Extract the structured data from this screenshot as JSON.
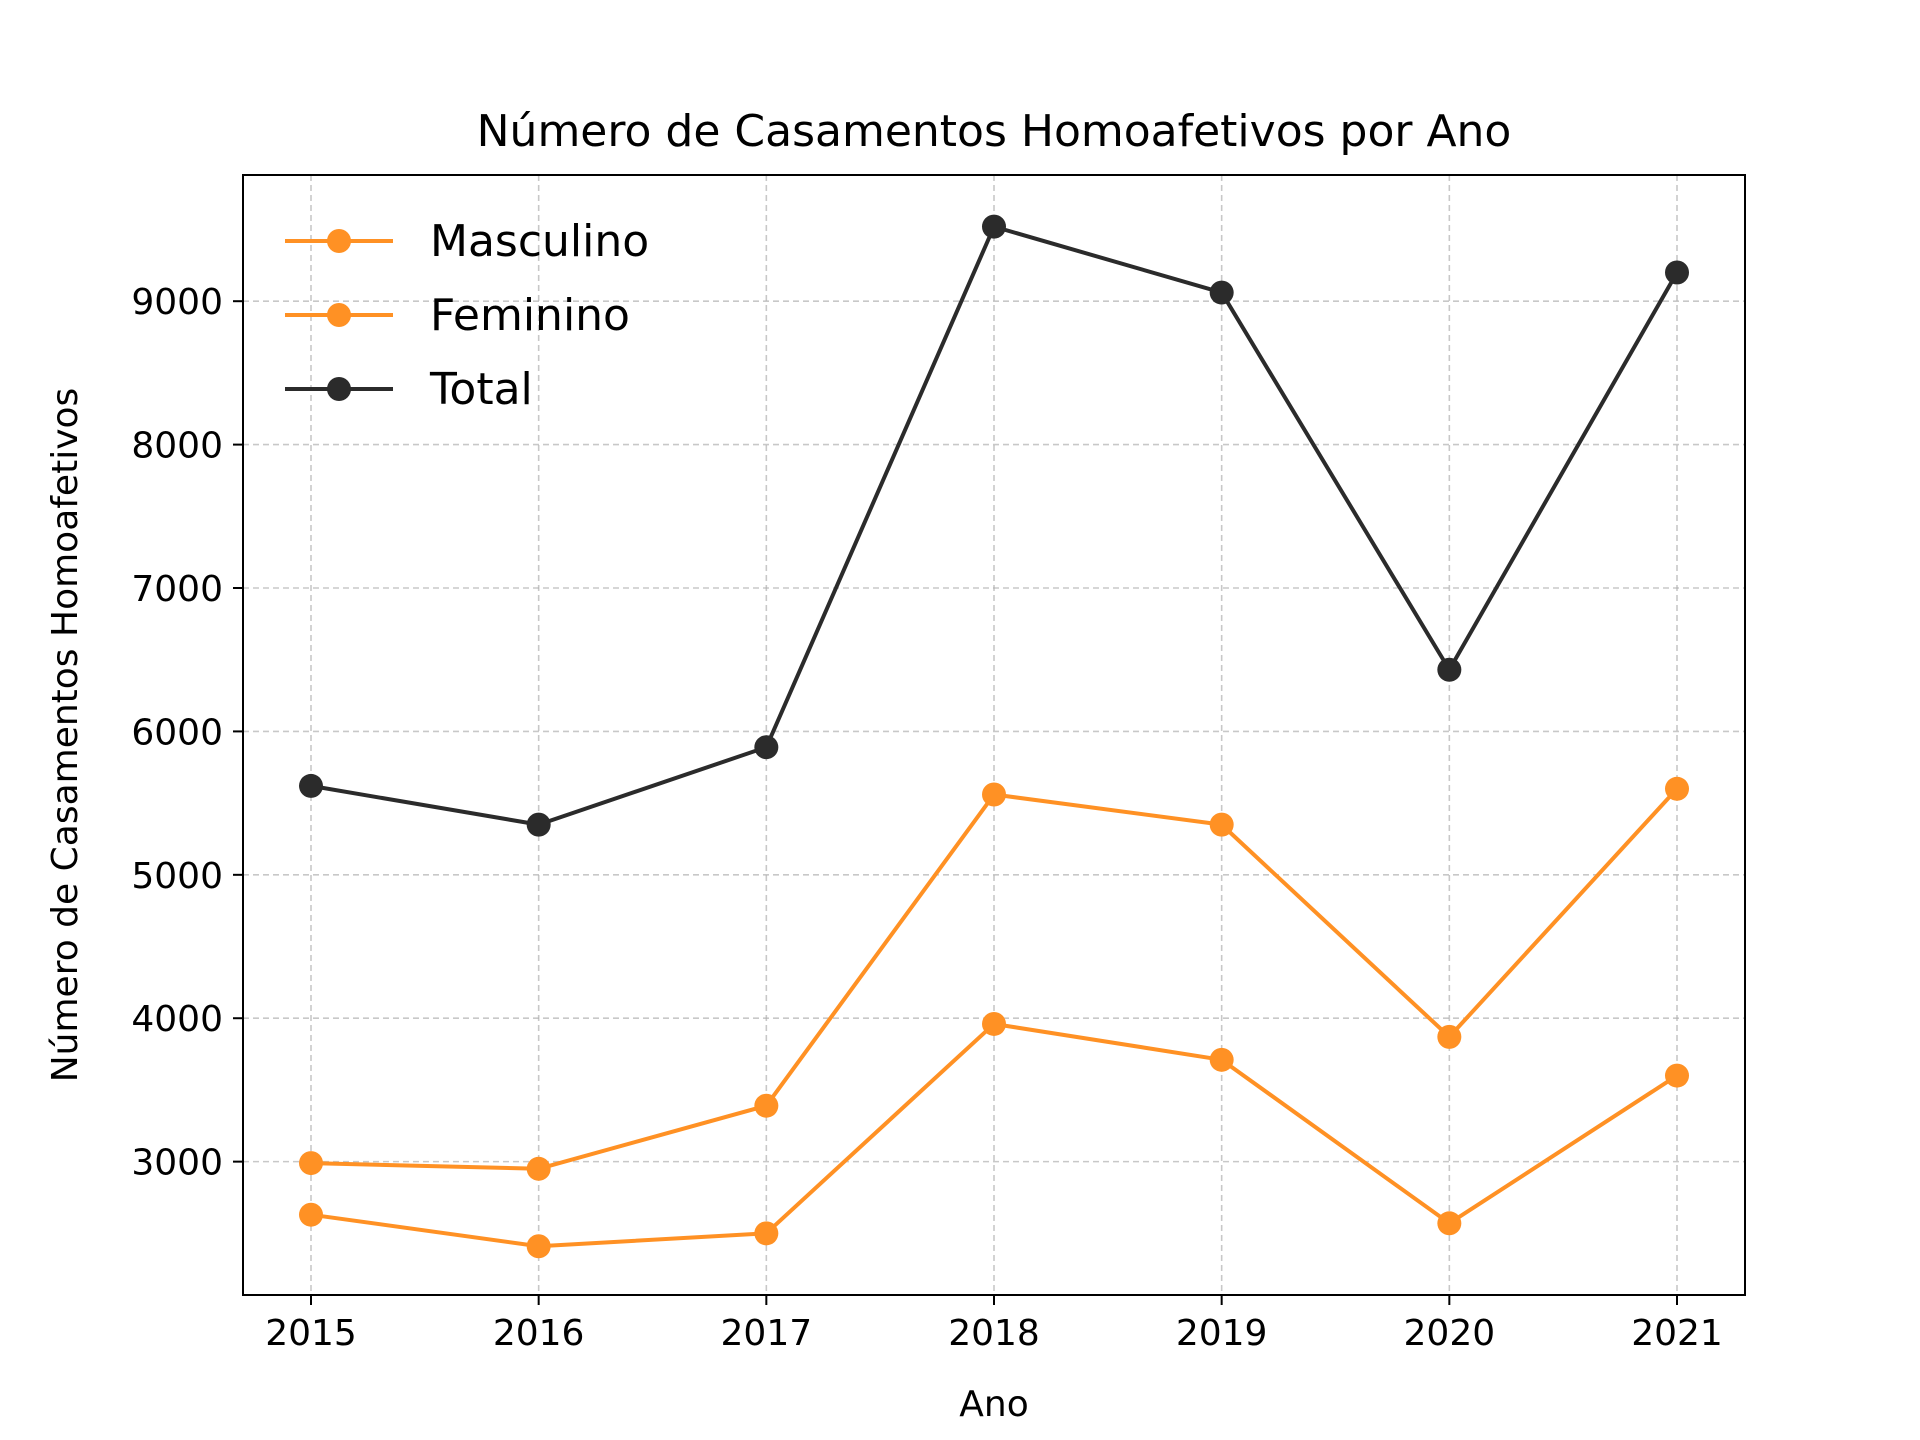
{
  "chart_data": {
    "type": "line",
    "title": "Número de Casamentos Homoafetivos por Ano",
    "xlabel": "Ano",
    "ylabel": "Número de Casamentos Homoafetivos",
    "x": [
      2015,
      2016,
      2017,
      2018,
      2019,
      2020,
      2021
    ],
    "ylim": [
      2070,
      9880
    ],
    "yticks": [
      3000,
      4000,
      5000,
      6000,
      7000,
      8000,
      9000
    ],
    "grid": true,
    "legend": "top-left",
    "series": [
      {
        "name": "Masculino",
        "color": "#ff9124",
        "values": [
          2990,
          2950,
          3390,
          5560,
          5350,
          3870,
          5600
        ]
      },
      {
        "name": "Feminino",
        "color": "#ff9124",
        "values": [
          2630,
          2410,
          2500,
          3960,
          3710,
          2570,
          3600
        ]
      },
      {
        "name": "Total",
        "color": "#2b2b2b",
        "values": [
          5620,
          5350,
          5890,
          9520,
          9060,
          6430,
          9200
        ]
      }
    ]
  }
}
